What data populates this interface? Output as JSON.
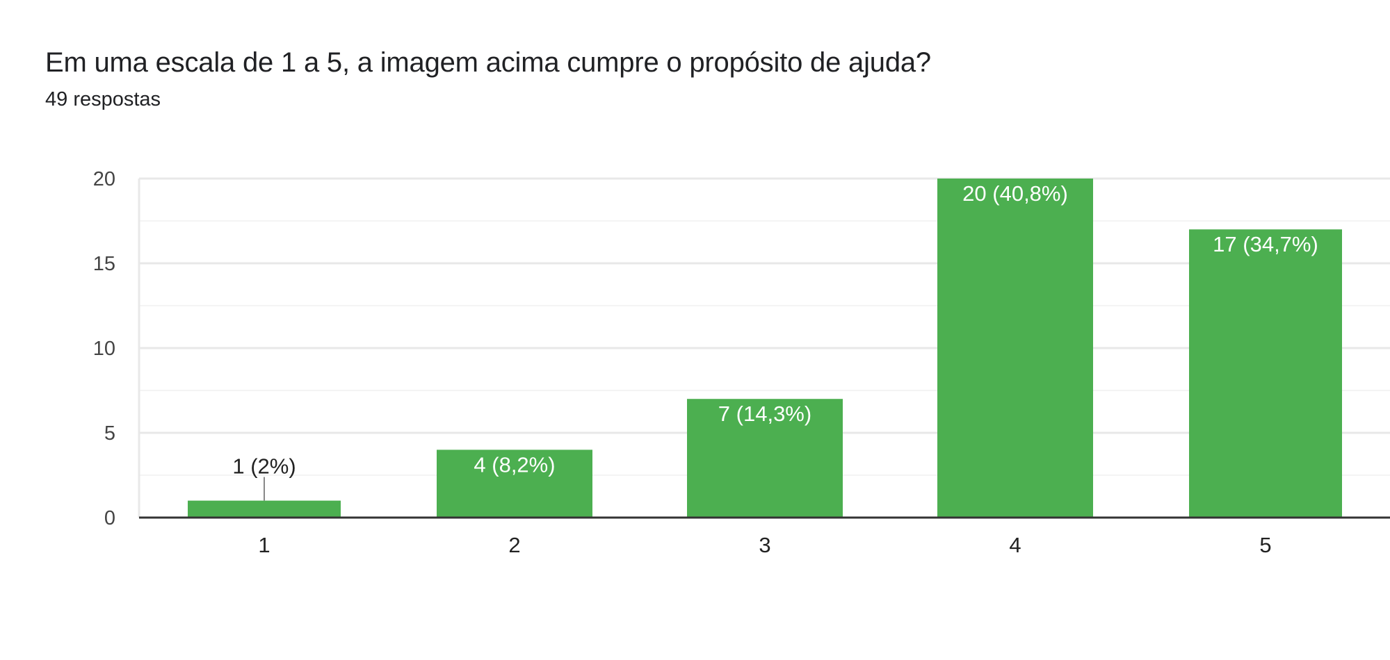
{
  "header": {
    "title": "Em uma escala de 1 a 5, a imagem acima cumpre o propósito de ajuda?",
    "subtitle": "49 respostas"
  },
  "chart_data": {
    "type": "bar",
    "title": "Em uma escala de 1 a 5, a imagem acima cumpre o propósito de ajuda?",
    "xlabel": "",
    "ylabel": "",
    "categories": [
      "1",
      "2",
      "3",
      "4",
      "5"
    ],
    "values": [
      1,
      4,
      7,
      20,
      17
    ],
    "data_labels": [
      "1 (2%)",
      "4 (8,2%)",
      "7 (14,3%)",
      "20 (40,8%)",
      "17 (34,7%)"
    ],
    "ylim": [
      0,
      20
    ],
    "yticks": [
      0,
      5,
      10,
      15,
      20
    ],
    "grid": true,
    "legend": "none",
    "colors": {
      "bar": "#4caf50",
      "grid_major": "#e8e8e8",
      "grid_minor": "#f4f4f4",
      "axis": "#333333",
      "tick_label": "#444444",
      "category_label": "#222222",
      "label_inside": "#ffffff",
      "label_outside": "#222222"
    }
  }
}
